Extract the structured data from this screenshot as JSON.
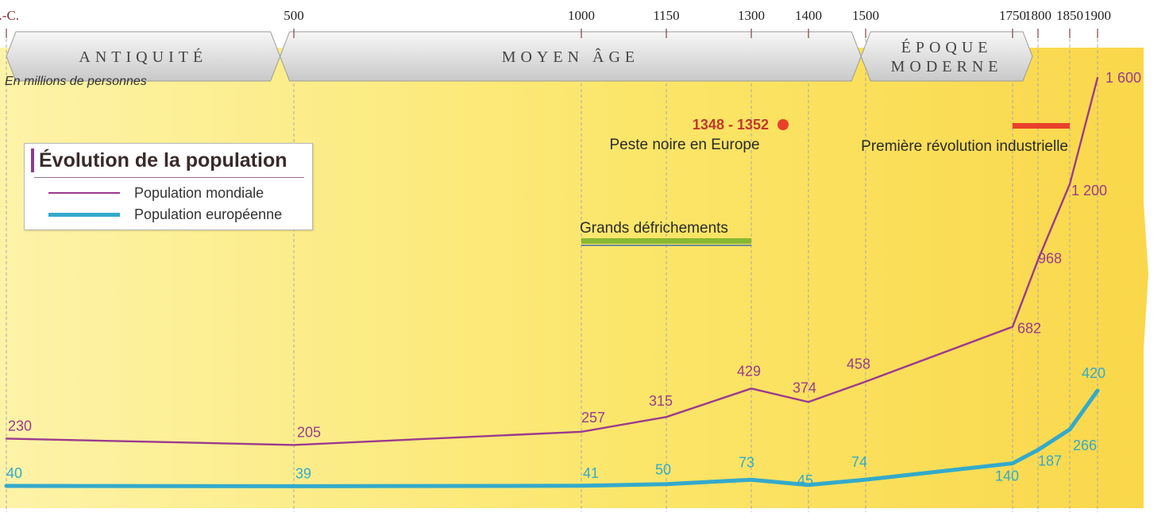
{
  "chart_data": {
    "type": "line",
    "unit_label": "En millions de personnes",
    "x": [
      "0",
      "500",
      "1000",
      "1150",
      "1300",
      "1400",
      "1500",
      "1750",
      "1800",
      "1850",
      "1900"
    ],
    "x_tick_labels": [
      "J.-C.",
      "500",
      "1000",
      "1150",
      "1300",
      "1400",
      "1500",
      "1750",
      "1800",
      "1850",
      "1900"
    ],
    "series": [
      {
        "key": "world",
        "name": "Population mondiale",
        "color": "#9b3a8e",
        "x": [
          0,
          500,
          1000,
          1150,
          1300,
          1400,
          1500,
          1750,
          1800,
          1850,
          1900
        ],
        "values": [
          230,
          205,
          257,
          315,
          429,
          374,
          458,
          682,
          968,
          1200,
          1600
        ],
        "labels": [
          "230",
          "205",
          "257",
          "315",
          "429",
          "374",
          "458",
          "682",
          "968",
          "1 200",
          "1 600"
        ]
      },
      {
        "key": "europe",
        "name": "Population européenne",
        "color": "#33aacb",
        "x": [
          0,
          500,
          1000,
          1150,
          1300,
          1400,
          1500,
          1750,
          1800,
          1850,
          1900
        ],
        "values": [
          40,
          39,
          41,
          50,
          73,
          45,
          74,
          140,
          187,
          266,
          420
        ],
        "labels": [
          "40",
          "39",
          "41",
          "50",
          "73",
          "45",
          "74",
          "140",
          "187",
          "266",
          "420"
        ]
      }
    ],
    "periods": [
      {
        "label": "ANTIQUITÉ",
        "from": 0,
        "to": 476
      },
      {
        "label": "MOYEN ÂGE",
        "from": 476,
        "to": 1492
      },
      {
        "label": "ÉPOQUE MODERNE",
        "lines": [
          "ÉPOQUE",
          "MODERNE"
        ],
        "from": 1492,
        "to": 1789
      }
    ],
    "annotations": [
      {
        "key": "peste",
        "date": "1348 - 1352",
        "text": "Peste noire en Europe",
        "marker": "dot",
        "color": "#e8402a"
      },
      {
        "key": "defrichements",
        "text": "Grands défrichements",
        "from": 1000,
        "to": 1300,
        "color": "#8ab832"
      },
      {
        "key": "revolution",
        "text": "Première révolution industrielle",
        "from": 1750,
        "to": 1850,
        "color": "#e8402a"
      }
    ],
    "legend": {
      "title": "Évolution de la population",
      "position": "top-left"
    },
    "background": "#fbe66a"
  }
}
